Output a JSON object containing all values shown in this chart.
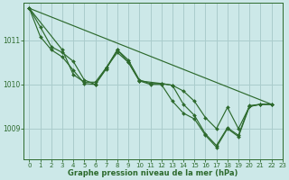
{
  "background_color": "#cce8e8",
  "grid_color": "#aacccc",
  "line_color": "#2d6a2d",
  "xlabel": "Graphe pression niveau de la mer (hPa)",
  "xlim": [
    -0.5,
    23
  ],
  "ylim": [
    1008.3,
    1011.85
  ],
  "yticks": [
    1009,
    1010,
    1011
  ],
  "xticks": [
    0,
    1,
    2,
    3,
    4,
    5,
    6,
    7,
    8,
    9,
    10,
    11,
    12,
    13,
    14,
    15,
    16,
    17,
    18,
    19,
    20,
    21,
    22,
    23
  ],
  "series1": [
    [
      0,
      1011.72
    ],
    [
      1,
      1011.3
    ],
    [
      2,
      1010.85
    ],
    [
      3,
      1010.72
    ],
    [
      4,
      1010.52
    ],
    [
      5,
      1010.1
    ],
    [
      6,
      1010.0
    ],
    [
      7,
      1010.35
    ],
    [
      8,
      1010.78
    ],
    [
      9,
      1010.55
    ],
    [
      10,
      1010.1
    ],
    [
      11,
      1010.02
    ],
    [
      12,
      1010.02
    ],
    [
      13,
      1009.98
    ],
    [
      14,
      1009.55
    ],
    [
      15,
      1009.3
    ],
    [
      16,
      1008.88
    ],
    [
      17,
      1008.62
    ],
    [
      18,
      1009.02
    ],
    [
      19,
      1008.85
    ],
    [
      20,
      1009.52
    ],
    [
      21,
      1009.55
    ],
    [
      22,
      1009.55
    ]
  ],
  "series2": [
    [
      0,
      1011.72
    ],
    [
      1,
      1011.08
    ],
    [
      2,
      1010.78
    ],
    [
      3,
      1010.62
    ],
    [
      4,
      1010.32
    ],
    [
      5,
      1010.02
    ],
    [
      6,
      1010.0
    ],
    [
      7,
      1010.38
    ],
    [
      8,
      1010.72
    ],
    [
      9,
      1010.5
    ],
    [
      10,
      1010.08
    ],
    [
      11,
      1010.0
    ],
    [
      12,
      1010.0
    ],
    [
      13,
      1009.62
    ],
    [
      14,
      1009.35
    ],
    [
      15,
      1009.22
    ],
    [
      16,
      1008.85
    ],
    [
      17,
      1008.58
    ],
    [
      18,
      1009.0
    ],
    [
      19,
      1008.82
    ],
    [
      20,
      1009.5
    ],
    [
      21,
      1009.55
    ],
    [
      22,
      1009.55
    ]
  ],
  "series3": [
    [
      0,
      1011.72
    ],
    [
      3,
      1010.78
    ],
    [
      4,
      1010.22
    ],
    [
      5,
      1010.05
    ],
    [
      6,
      1010.05
    ],
    [
      7,
      1010.38
    ],
    [
      8,
      1010.78
    ],
    [
      9,
      1010.5
    ],
    [
      10,
      1010.08
    ],
    [
      12,
      1010.02
    ],
    [
      13,
      1009.98
    ],
    [
      14,
      1009.85
    ],
    [
      15,
      1009.62
    ],
    [
      16,
      1009.25
    ],
    [
      17,
      1009.0
    ],
    [
      18,
      1009.48
    ],
    [
      19,
      1009.0
    ],
    [
      20,
      1009.5
    ],
    [
      21,
      1009.55
    ],
    [
      22,
      1009.55
    ]
  ],
  "series_diag": [
    [
      0,
      1011.72
    ],
    [
      22,
      1009.55
    ]
  ]
}
